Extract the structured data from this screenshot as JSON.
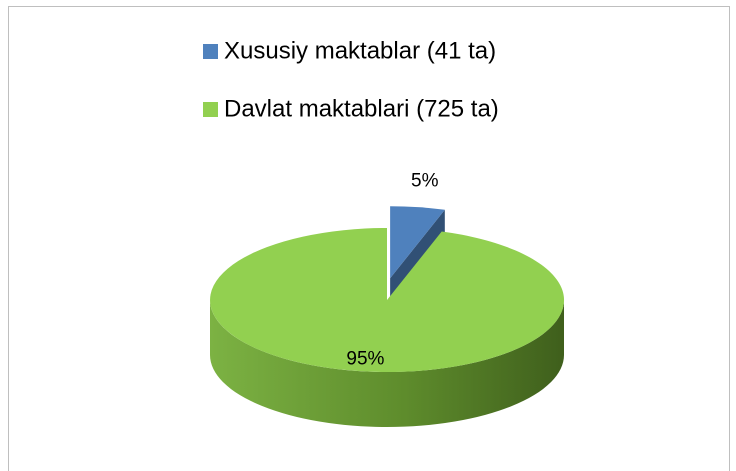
{
  "chart_data": {
    "type": "pie",
    "categories": [
      "Xususiy maktablar (41 ta)",
      "Davlat maktablari (725 ta)"
    ],
    "values": [
      5,
      95
    ],
    "value_labels": [
      "5%",
      "95%"
    ],
    "colors": [
      "#4f81bd",
      "#92d050"
    ],
    "legend": "top"
  }
}
